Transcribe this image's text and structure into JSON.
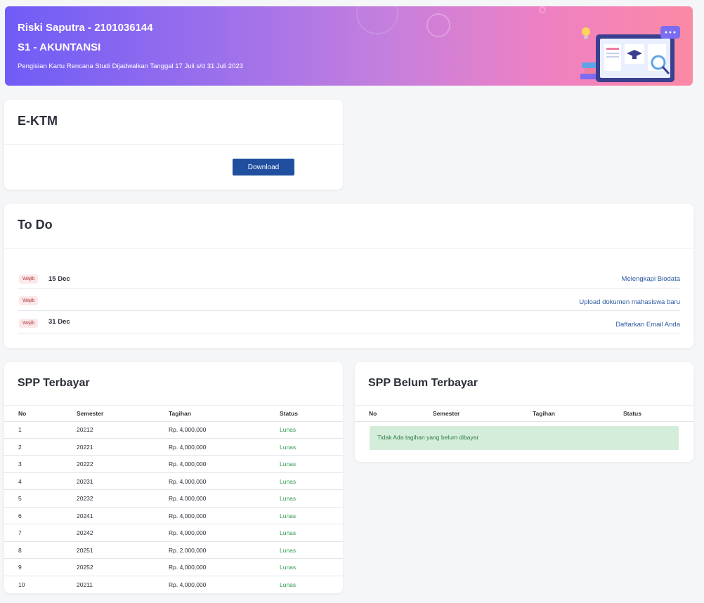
{
  "banner": {
    "name": "Riski Saputra - 2101036144",
    "prodi": "S1 - AKUNTANSI",
    "schedule": "Pengisian Kartu Rencana Studi Dijadwalkan Tanggal 17 Juli s/d 31 Juli 2023"
  },
  "ektm": {
    "title": "E-KTM",
    "download_label": "Download"
  },
  "todo": {
    "title": "To Do",
    "items": [
      {
        "badge": "Wajib",
        "date": "15 Dec",
        "link": "Melengkapi Biodata"
      },
      {
        "badge": "Wajib",
        "date": "",
        "link": "Upload dokumen mahasiswa baru"
      },
      {
        "badge": "Wajib",
        "date": "31 Dec",
        "link": "Daftarkan Email Anda"
      }
    ]
  },
  "spp_paid": {
    "title": "SPP Terbayar",
    "headers": [
      "No",
      "Semester",
      "Tagihan",
      "Status"
    ],
    "rows": [
      [
        "1",
        "20212",
        "Rp. 4,000,000",
        "Lunas"
      ],
      [
        "2",
        "20221",
        "Rp. 4,000,000",
        "Lunas"
      ],
      [
        "3",
        "20222",
        "Rp. 4,000,000",
        "Lunas"
      ],
      [
        "4",
        "20231",
        "Rp. 4,000,000",
        "Lunas"
      ],
      [
        "5",
        "20232",
        "Rp. 4.000,000",
        "Lunas"
      ],
      [
        "6",
        "20241",
        "Rp. 4,000,000",
        "Lunas"
      ],
      [
        "7",
        "20242",
        "Rp. 4,000,000",
        "Lunas"
      ],
      [
        "8",
        "20251",
        "Rp. 2.000,000",
        "Lunas"
      ],
      [
        "9",
        "20252",
        "Rp. 4,000,000",
        "Lunas"
      ],
      [
        "10",
        "20211",
        "Rp. 4,000,000",
        "Lunas"
      ]
    ]
  },
  "spp_unpaid": {
    "title": "SPP Belum Terbayar",
    "headers": [
      "No",
      "Semester",
      "Tagihan",
      "Status"
    ],
    "empty_message": "Tidak Ada tagihan yang belum dibayar"
  }
}
